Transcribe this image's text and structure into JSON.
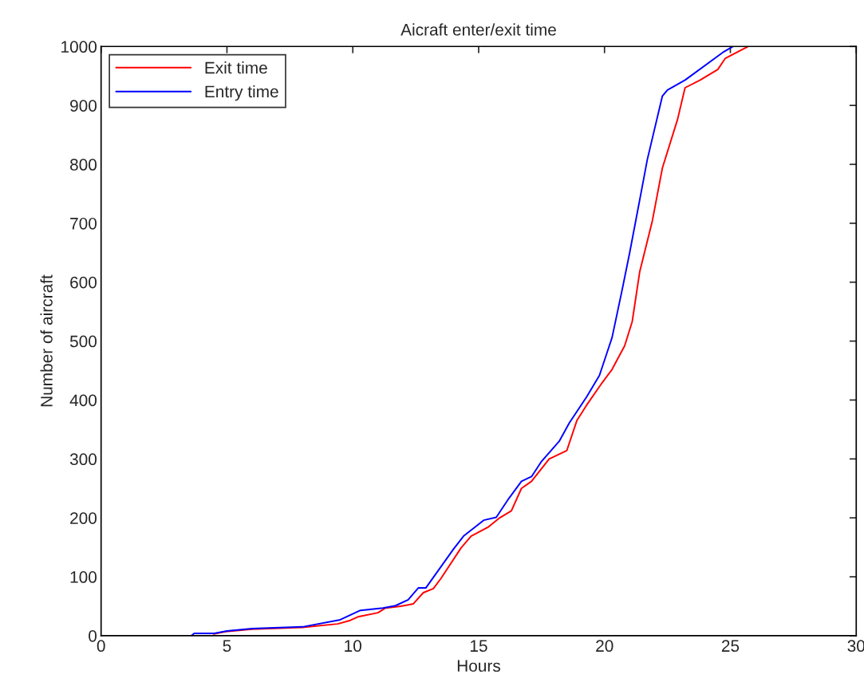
{
  "chart_data": {
    "type": "line",
    "title": "Aicraft enter/exit time",
    "xlabel": "Hours",
    "ylabel": "Number of aircraft",
    "xlim": [
      0,
      30
    ],
    "xticks": [
      0,
      5,
      10,
      15,
      20,
      25,
      30
    ],
    "ylim": [
      0,
      1000
    ],
    "yticks": [
      0,
      100,
      200,
      300,
      400,
      500,
      600,
      700,
      800,
      900,
      1000
    ],
    "grid": false,
    "legend": "top left",
    "marker": "none",
    "line_style": "solid",
    "series": [
      {
        "name": "Exit time",
        "color": "#ff0000",
        "x": [
          4.47,
          4.95,
          6,
          8,
          9.4,
          9.9,
          10.2,
          11.0,
          11.3,
          11.9,
          12.4,
          12.8,
          13.2,
          13.5,
          14.3,
          14.7,
          15.4,
          15.8,
          16.3,
          16.7,
          17.1,
          17.8,
          18.5,
          18.9,
          19.3,
          19.9,
          20.3,
          20.8,
          21.1,
          21.4,
          21.9,
          22.3,
          22.9,
          23.2,
          23.8,
          24.5,
          24.8,
          25.7
        ],
        "values": [
          3,
          7,
          11,
          14,
          20,
          26,
          32,
          39,
          47,
          50,
          54,
          73,
          80,
          97,
          149,
          169,
          185,
          199,
          212,
          250,
          262,
          300,
          314,
          365,
          392,
          429,
          452,
          492,
          533,
          618,
          704,
          794,
          876,
          930,
          943,
          961,
          980,
          1000
        ]
      },
      {
        "name": "Entry time",
        "color": "#0000ff",
        "x": [
          3.58,
          3.7,
          4.5,
          5,
          6,
          8,
          9.5,
          10.3,
          11.2,
          11.7,
          12.2,
          12.6,
          12.9,
          14.0,
          14.4,
          15.2,
          15.7,
          16.2,
          16.7,
          17.1,
          17.5,
          18.2,
          18.6,
          19.3,
          19.8,
          20.3,
          20.7,
          21.0,
          21.4,
          21.7,
          22.3,
          22.5,
          23.2,
          24.7,
          25.1
        ],
        "values": [
          0,
          4,
          4,
          8,
          12,
          15,
          27,
          43,
          47,
          51,
          61,
          81,
          81,
          147,
          169,
          196,
          201,
          233,
          262,
          270,
          296,
          330,
          361,
          406,
          442,
          506,
          587,
          650,
          740,
          808,
          916,
          926,
          943,
          990,
          1000
        ]
      }
    ]
  }
}
